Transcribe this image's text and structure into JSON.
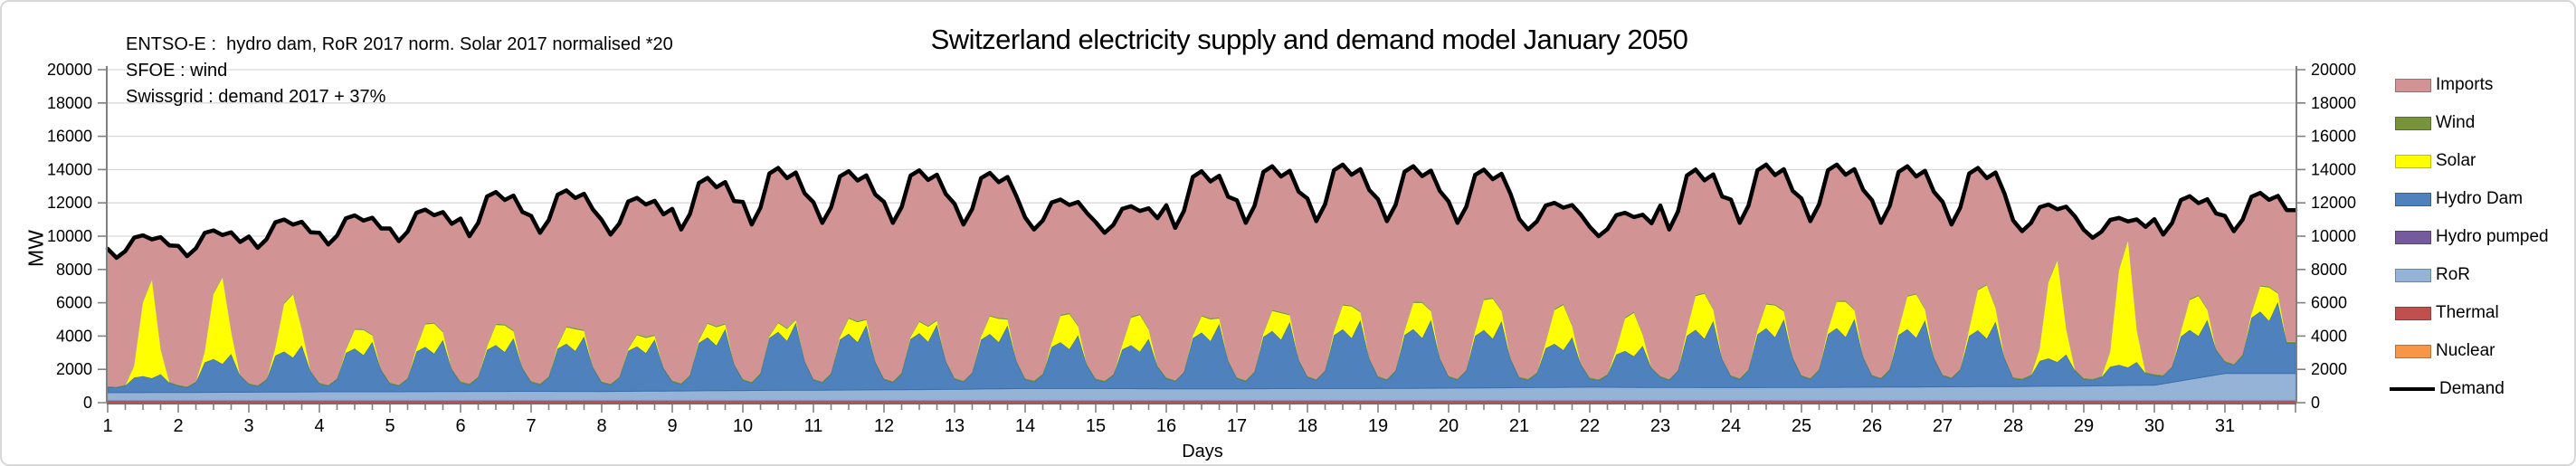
{
  "figure": {
    "title": "Switzerland electricity supply and demand model January 2050",
    "annotations": [
      "ENTSO-E :  hydro dam, RoR 2017 norm. Solar 2017 normalised *20",
      "SFOE : wind",
      "Swissgrid : demand 2017 + 37%"
    ]
  },
  "axes": {
    "y_label": "MW",
    "x_label": "Days",
    "y_min": 0,
    "y_max": 20000,
    "y_tick_step": 2000,
    "x_day_first": 1,
    "x_day_last": 31,
    "x_minor_ticks_per_day": 4
  },
  "legend": [
    {
      "label": "Imports",
      "color": "#D29394",
      "kind": "box"
    },
    {
      "label": "Wind",
      "color": "#77933C",
      "kind": "box"
    },
    {
      "label": "Solar",
      "color": "#FFFF00",
      "kind": "box"
    },
    {
      "label": "Hydro Dam",
      "color": "#4F81BD",
      "kind": "box"
    },
    {
      "label": "Hydro pumped",
      "color": "#755A9E",
      "kind": "box"
    },
    {
      "label": "RoR",
      "color": "#95B3D7",
      "kind": "box"
    },
    {
      "label": "Thermal",
      "color": "#C0504D",
      "kind": "box"
    },
    {
      "label": "Nuclear",
      "color": "#F79646",
      "kind": "box"
    },
    {
      "label": "Demand",
      "color": "#000000",
      "kind": "line"
    }
  ],
  "chart_data": {
    "type": "area",
    "stacked": true,
    "title": "Switzerland electricity supply and demand model January 2050",
    "xlabel": "Days",
    "ylabel": "MW",
    "ylim": [
      0,
      20000
    ],
    "x_range_days": [
      1,
      31
    ],
    "grid": "horizontal-only",
    "legend_position": "right",
    "stack_order_bottom_to_top": [
      "Nuclear",
      "Thermal",
      "RoR",
      "Hydro pumped",
      "Hydro Dam",
      "Solar",
      "Wind",
      "Imports"
    ],
    "constant_series_mw": {
      "Nuclear": 0,
      "Thermal": 150,
      "Hydro pumped": 0
    },
    "imports_rule": "Imports = Demand minus all other supply; the pink Imports band fills up to the black Demand line",
    "sampling_hours": 3,
    "intraday_profile_hours": [
      0,
      3,
      6,
      9,
      12,
      15,
      18,
      21
    ],
    "profiles": {
      "demand_fraction_min_to_peak": [
        0.4,
        0.0,
        0.3,
        0.9,
        1.0,
        0.82,
        0.92,
        0.55
      ],
      "hydro_dam_fraction_night_to_peak": [
        0.05,
        0.0,
        0.15,
        0.75,
        0.85,
        0.7,
        1.0,
        0.35
      ],
      "solar_fraction_of_peak": [
        0.0,
        0.0,
        0.0,
        0.12,
        0.75,
        1.0,
        0.25,
        0.0
      ]
    },
    "daily_values_mw": {
      "day": [
        1,
        2,
        3,
        4,
        5,
        6,
        7,
        8,
        9,
        10,
        11,
        12,
        13,
        14,
        15,
        16,
        17,
        18,
        19,
        20,
        21,
        22,
        23,
        24,
        25,
        26,
        27,
        28,
        29,
        30,
        31
      ],
      "demand_night_min": [
        8700,
        8800,
        9300,
        9500,
        9700,
        10000,
        10200,
        10100,
        10400,
        10700,
        10800,
        10800,
        10700,
        10400,
        10200,
        10500,
        10800,
        10900,
        10900,
        10800,
        10400,
        10000,
        10400,
        10800,
        10900,
        10800,
        10700,
        10300,
        9900,
        10100,
        10300
      ],
      "demand_day_peak": [
        10050,
        10350,
        11000,
        11250,
        11600,
        12650,
        12750,
        12300,
        13500,
        14100,
        13900,
        13950,
        13800,
        12200,
        11800,
        13900,
        14200,
        14300,
        14200,
        14000,
        12000,
        11400,
        14000,
        14300,
        14300,
        14200,
        14100,
        11900,
        11100,
        12400,
        12600
      ],
      "solar_noon_peak": [
        5900,
        5200,
        3800,
        1500,
        1800,
        1600,
        1300,
        900,
        1100,
        700,
        1200,
        900,
        1400,
        2100,
        2200,
        1300,
        1600,
        1900,
        2100,
        2400,
        2700,
        2600,
        2700,
        1900,
        2100,
        2600,
        3200,
        6100,
        7600,
        2400,
        2000
      ],
      "hydro_dam_day_peak": [
        1100,
        2300,
        2800,
        3000,
        3100,
        3200,
        3300,
        3100,
        3700,
        4050,
        3900,
        3900,
        3800,
        3200,
        3000,
        3900,
        4000,
        4100,
        4100,
        4000,
        3000,
        2500,
        4000,
        4100,
        4100,
        4000,
        3900,
        1900,
        1400,
        3400,
        4300
      ],
      "hydro_dam_night": [
        300,
        300,
        350,
        350,
        350,
        400,
        400,
        400,
        400,
        450,
        450,
        450,
        450,
        400,
        400,
        450,
        450,
        500,
        500,
        500,
        450,
        400,
        450,
        500,
        500,
        500,
        500,
        400,
        350,
        450,
        500
      ],
      "ror": [
        450,
        460,
        480,
        500,
        500,
        520,
        530,
        520,
        550,
        580,
        600,
        620,
        650,
        700,
        700,
        680,
        680,
        700,
        700,
        720,
        750,
        780,
        760,
        750,
        760,
        780,
        800,
        820,
        850,
        900,
        1600
      ],
      "wind": [
        60,
        60,
        70,
        70,
        70,
        80,
        80,
        70,
        70,
        70,
        70,
        70,
        70,
        80,
        80,
        70,
        70,
        70,
        70,
        70,
        80,
        80,
        70,
        70,
        70,
        70,
        70,
        80,
        80,
        70,
        70
      ]
    },
    "colors": {
      "Imports": "#D29394",
      "Wind": "#77933C",
      "Solar": "#FFFF00",
      "Hydro Dam": "#4F81BD",
      "Hydro pumped": "#755A9E",
      "RoR": "#95B3D7",
      "Thermal": "#C0504D",
      "Nuclear": "#F79646",
      "Demand": "#000000"
    }
  }
}
